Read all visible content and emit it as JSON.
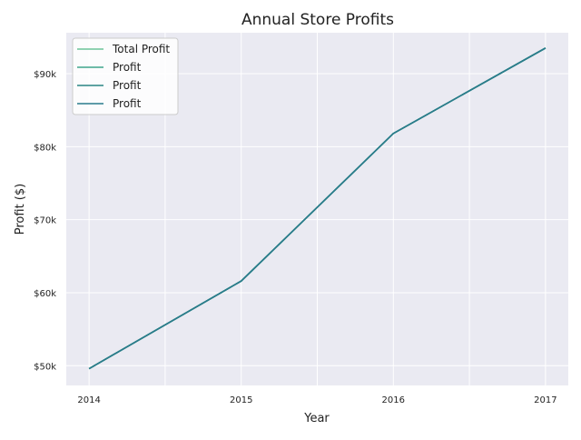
{
  "chart_data": {
    "type": "line",
    "title": "Annual Store Profits",
    "xlabel": "Year",
    "ylabel": "Profit ($)",
    "x": [
      2014,
      2015,
      2016,
      2017
    ],
    "x_ticks": [
      "2014",
      "2015",
      "2016",
      "2017"
    ],
    "y_ticks": [
      {
        "value": 50000,
        "label": "$50k"
      },
      {
        "value": 60000,
        "label": "$60k"
      },
      {
        "value": 70000,
        "label": "$70k"
      },
      {
        "value": 80000,
        "label": "$80k"
      },
      {
        "value": 90000,
        "label": "$90k"
      }
    ],
    "xlim": [
      2013.85,
      2017.15
    ],
    "ylim": [
      47300,
      95600
    ],
    "grid": true,
    "legend_position": "top-left",
    "series": [
      {
        "name": "Total Profit",
        "color": "#6cc49a",
        "values": [
          49600,
          61600,
          81800,
          93500
        ]
      },
      {
        "name": "Profit",
        "color": "#3fa58c",
        "values": [
          49600,
          61600,
          81800,
          93500
        ]
      },
      {
        "name": "Profit",
        "color": "#2a8583",
        "values": [
          49600,
          61600,
          81800,
          93500
        ]
      },
      {
        "name": "Profit",
        "color": "#2a7b8b",
        "values": [
          49600,
          61600,
          81800,
          93500
        ]
      }
    ]
  }
}
